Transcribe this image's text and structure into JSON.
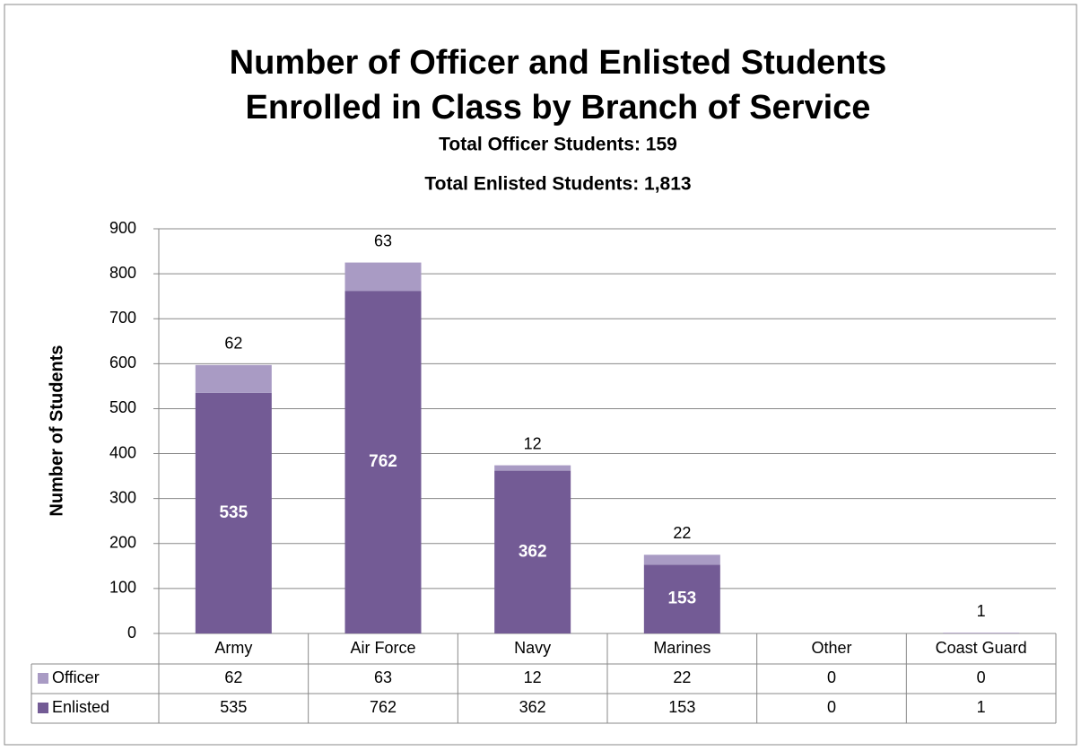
{
  "chart_data": {
    "type": "stacked_bar",
    "title": [
      "Number of Officer and Enlisted Students",
      "Enrolled in Class by Branch of Service"
    ],
    "subtitle": [
      "Total Officer Students: 159",
      "Total Enlisted Students: 1,813"
    ],
    "y_label": "Number of Students",
    "categories": [
      "Army",
      "Air Force",
      "Navy",
      "Marines",
      "Other",
      "Coast Guard"
    ],
    "series": [
      {
        "name": "Enlisted",
        "color": "#735b95",
        "values": [
          535,
          762,
          362,
          153,
          0,
          1
        ]
      },
      {
        "name": "Officer",
        "color": "#a99bc4",
        "values": [
          62,
          63,
          12,
          22,
          0,
          0
        ]
      }
    ],
    "table_rows": [
      "Officer",
      "Enlisted"
    ],
    "ylim": [
      0,
      900
    ],
    "yticks": [
      0,
      100,
      200,
      300,
      400,
      500,
      600,
      700,
      800,
      900
    ],
    "grid": true
  }
}
